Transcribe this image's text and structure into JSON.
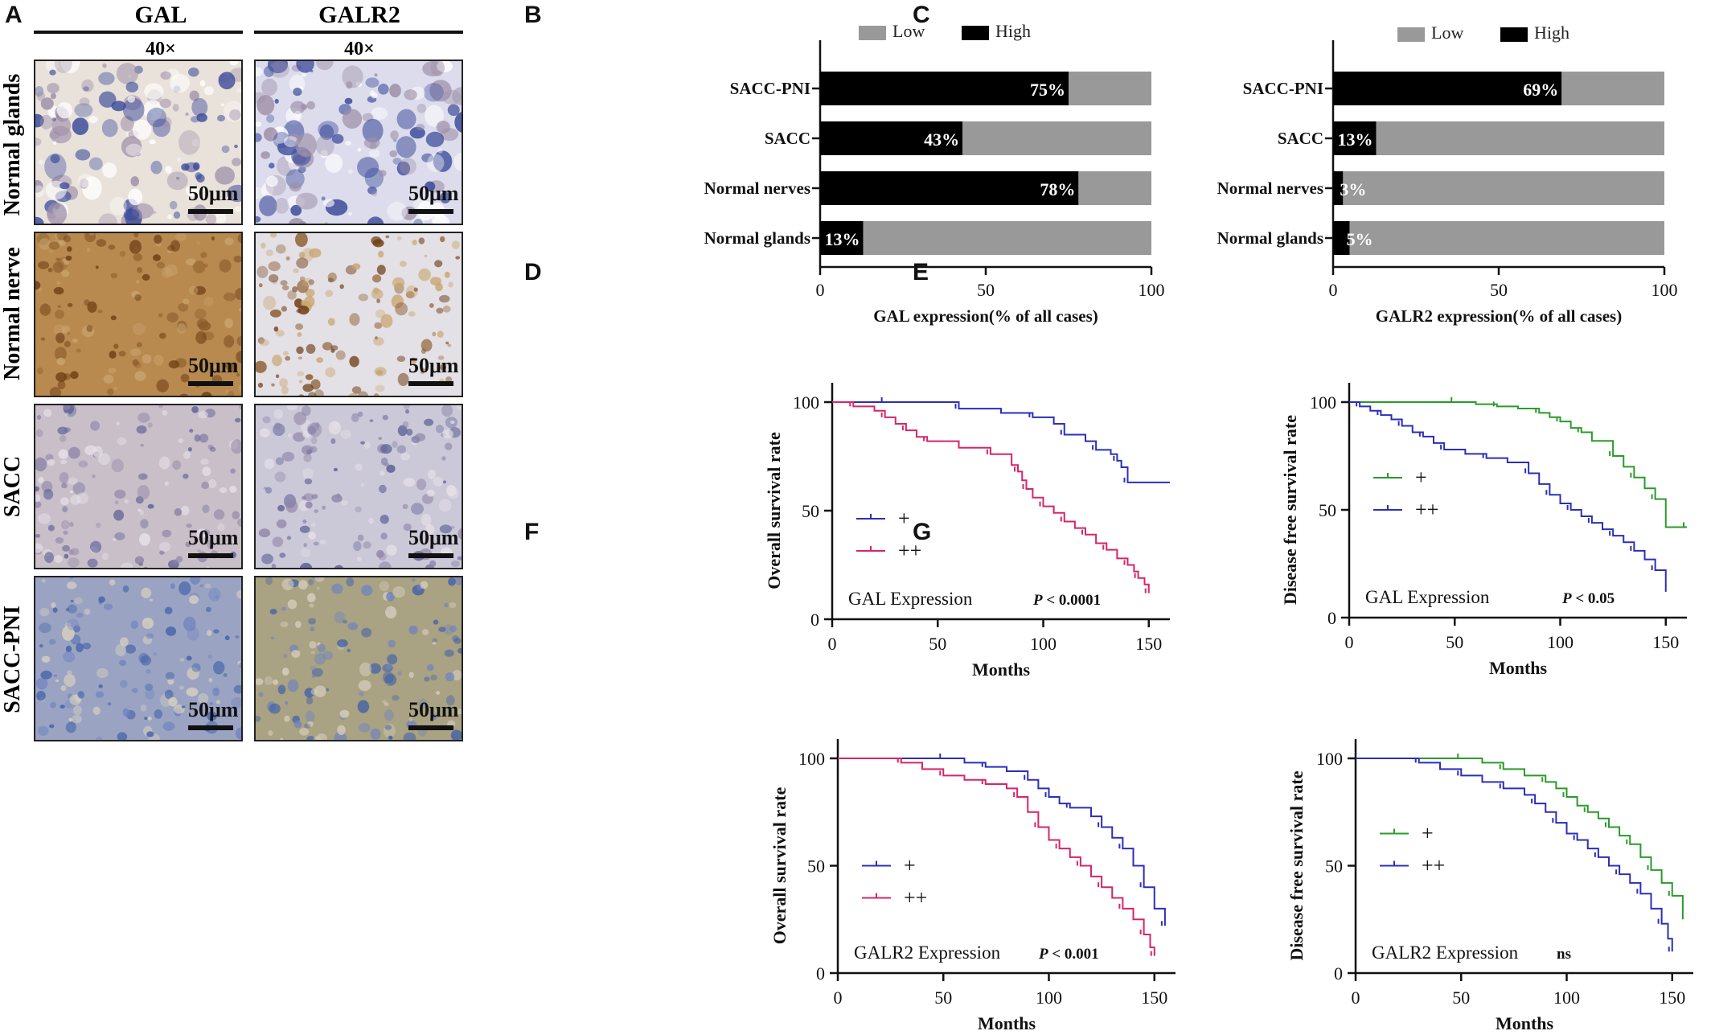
{
  "panel_letters": {
    "A": "A",
    "B": "B",
    "C": "C",
    "D": "D",
    "E": "E",
    "F": "F",
    "G": "G"
  },
  "panel_A": {
    "columns": [
      "GAL",
      "GALR2"
    ],
    "magnification": "40×",
    "rows": [
      "Normal  glands",
      "Normal  nerve",
      "SACC",
      "SACC-PNI"
    ],
    "scale_label": "50μm",
    "tile_colors": {
      "gal": [
        "#e9e2db",
        "#b98a4f",
        "#c9bfc8",
        "#9aa4c2"
      ],
      "galr2": [
        "#dcdcec",
        "#e3e0e6",
        "#cbc8d8",
        "#a9a283"
      ]
    }
  },
  "chart_data": [
    {
      "panel": "B",
      "type": "bar",
      "orientation": "horizontal",
      "stacked": true,
      "categories": [
        "SACC-PNI",
        "SACC",
        "Normal nerves",
        "Normal glands"
      ],
      "series": [
        {
          "name": "High",
          "color": "#000000",
          "values": [
            75,
            43,
            78,
            13
          ]
        },
        {
          "name": "Low",
          "color": "#999999",
          "values": [
            25,
            57,
            22,
            87
          ]
        }
      ],
      "data_labels": [
        "75%",
        "43%",
        "78%",
        "13%"
      ],
      "xlabel": "GAL expression(% of all cases)",
      "xlim": [
        0,
        100
      ],
      "xticks": [
        0,
        50,
        100
      ],
      "legend": "top"
    },
    {
      "panel": "C",
      "type": "bar",
      "orientation": "horizontal",
      "stacked": true,
      "categories": [
        "SACC-PNI",
        "SACC",
        "Normal nerves",
        "Normal glands"
      ],
      "series": [
        {
          "name": "High",
          "color": "#000000",
          "values": [
            69,
            13,
            3,
            5
          ]
        },
        {
          "name": "Low",
          "color": "#999999",
          "values": [
            31,
            87,
            97,
            95
          ]
        }
      ],
      "data_labels": [
        "69%",
        "13%",
        "3%",
        "5%"
      ],
      "xlabel": "GALR2 expression(% of all cases)",
      "xlim": [
        0,
        100
      ],
      "xticks": [
        0,
        50,
        100
      ],
      "legend": "top"
    },
    {
      "panel": "D",
      "type": "line",
      "step": true,
      "ylabel": "Overall survival rate",
      "xlabel": "Months",
      "annotation": "GAL Expression",
      "p_label": "P",
      "p_value": " < 0.0001",
      "xlim": [
        0,
        160
      ],
      "ylim": [
        0,
        100
      ],
      "xticks": [
        0,
        50,
        100,
        150
      ],
      "yticks": [
        0,
        50,
        100
      ],
      "legend": "left",
      "series": [
        {
          "name": "+",
          "color": "#2b2fb8",
          "x": [
            0,
            25,
            45,
            60,
            80,
            95,
            105,
            110,
            120,
            125,
            132,
            135,
            137,
            140,
            160
          ],
          "y": [
            100,
            100,
            100,
            97,
            95,
            93,
            90,
            85,
            82,
            78,
            76,
            73,
            70,
            63,
            63
          ]
        },
        {
          "name": "++",
          "color": "#d6256b",
          "x": [
            0,
            10,
            20,
            25,
            30,
            35,
            40,
            45,
            60,
            75,
            85,
            88,
            90,
            92,
            95,
            100,
            105,
            110,
            115,
            120,
            125,
            130,
            135,
            140,
            143,
            145,
            148,
            150
          ],
          "y": [
            100,
            98,
            96,
            93,
            90,
            87,
            84,
            82,
            79,
            76,
            71,
            68,
            64,
            60,
            56,
            52,
            49,
            45,
            42,
            39,
            35,
            32,
            28,
            25,
            22,
            19,
            16,
            12
          ]
        }
      ]
    },
    {
      "panel": "E",
      "type": "line",
      "step": true,
      "ylabel": "Disease free survival rate",
      "xlabel": "Months",
      "annotation": "GAL Expression",
      "p_label": "P",
      "p_value": " < 0.05",
      "xlim": [
        0,
        160
      ],
      "ylim": [
        0,
        100
      ],
      "xticks": [
        0,
        50,
        100,
        150
      ],
      "yticks": [
        0,
        50,
        100
      ],
      "legend": "left",
      "series": [
        {
          "name": "+",
          "color": "#2a9b2a",
          "x": [
            0,
            50,
            60,
            70,
            80,
            90,
            95,
            100,
            105,
            110,
            115,
            125,
            130,
            135,
            140,
            145,
            150,
            160
          ],
          "y": [
            100,
            100,
            99,
            98,
            97,
            95,
            93,
            91,
            88,
            86,
            82,
            75,
            70,
            65,
            60,
            55,
            42,
            42
          ]
        },
        {
          "name": "++",
          "color": "#2b2fb8",
          "x": [
            0,
            5,
            10,
            15,
            20,
            25,
            30,
            35,
            40,
            45,
            55,
            65,
            75,
            85,
            90,
            95,
            100,
            105,
            110,
            115,
            120,
            125,
            130,
            135,
            140,
            145,
            150
          ],
          "y": [
            100,
            98,
            96,
            94,
            92,
            89,
            86,
            84,
            81,
            78,
            76,
            74,
            72,
            67,
            62,
            57,
            53,
            50,
            47,
            44,
            41,
            38,
            35,
            31,
            27,
            22,
            12
          ]
        }
      ]
    },
    {
      "panel": "F",
      "type": "line",
      "step": true,
      "ylabel": "Overall survival rate",
      "xlabel": "Months",
      "annotation": "GALR2 Expression",
      "p_label": "P",
      "p_value": " < 0.001",
      "xlim": [
        0,
        160
      ],
      "ylim": [
        0,
        100
      ],
      "xticks": [
        0,
        50,
        100,
        150
      ],
      "yticks": [
        0,
        50,
        100
      ],
      "legend": "left",
      "series": [
        {
          "name": "+",
          "color": "#2b2fb8",
          "x": [
            0,
            50,
            60,
            70,
            80,
            90,
            95,
            100,
            105,
            110,
            120,
            125,
            130,
            135,
            140,
            145,
            150,
            155
          ],
          "y": [
            100,
            100,
            98,
            96,
            94,
            90,
            86,
            82,
            79,
            77,
            73,
            68,
            63,
            58,
            50,
            40,
            30,
            22
          ]
        },
        {
          "name": "++",
          "color": "#d6256b",
          "x": [
            0,
            30,
            40,
            50,
            60,
            70,
            80,
            85,
            90,
            95,
            100,
            105,
            110,
            115,
            120,
            125,
            130,
            135,
            140,
            145,
            148,
            150
          ],
          "y": [
            100,
            98,
            95,
            92,
            90,
            88,
            86,
            82,
            75,
            68,
            62,
            58,
            54,
            50,
            45,
            40,
            35,
            30,
            25,
            18,
            12,
            8
          ]
        }
      ]
    },
    {
      "panel": "G",
      "type": "line",
      "step": true,
      "ylabel": "Disease free survival rate",
      "xlabel": "Months",
      "annotation": "GALR2 Expression",
      "p_label": "",
      "p_value": "ns",
      "xlim": [
        0,
        160
      ],
      "ylim": [
        0,
        100
      ],
      "xticks": [
        0,
        50,
        100,
        150
      ],
      "yticks": [
        0,
        50,
        100
      ],
      "legend": "left",
      "series": [
        {
          "name": "+",
          "color": "#2a9b2a",
          "x": [
            0,
            50,
            60,
            70,
            80,
            90,
            95,
            100,
            105,
            110,
            115,
            120,
            125,
            130,
            135,
            140,
            145,
            150,
            155
          ],
          "y": [
            100,
            100,
            98,
            95,
            92,
            89,
            86,
            82,
            78,
            75,
            72,
            68,
            64,
            60,
            54,
            48,
            42,
            36,
            25
          ]
        },
        {
          "name": "++",
          "color": "#2b2fb8",
          "x": [
            0,
            30,
            40,
            50,
            60,
            70,
            80,
            85,
            90,
            95,
            100,
            105,
            110,
            115,
            120,
            125,
            130,
            135,
            140,
            145,
            148,
            150
          ],
          "y": [
            100,
            98,
            95,
            92,
            89,
            86,
            83,
            79,
            75,
            70,
            65,
            62,
            58,
            54,
            50,
            46,
            42,
            37,
            30,
            23,
            16,
            10
          ]
        }
      ]
    }
  ]
}
